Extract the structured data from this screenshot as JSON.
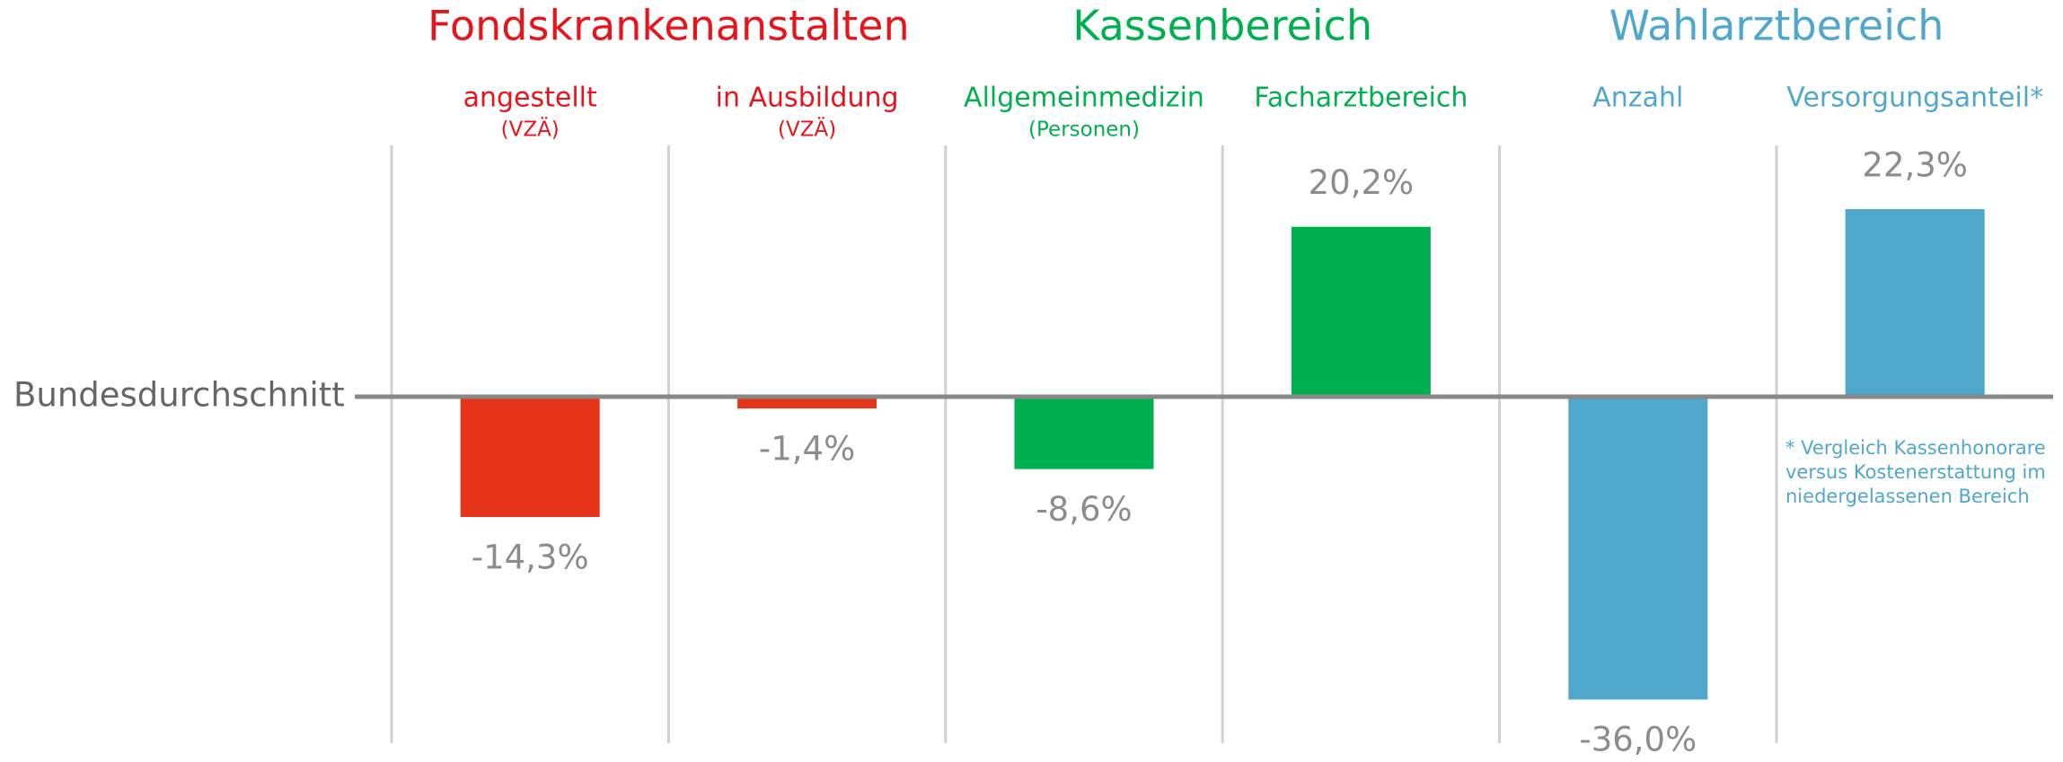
{
  "chart_data": {
    "type": "bar",
    "baseline_label": "Bundesdurchschnitt",
    "series": [
      {
        "name": "Fondskrankenanstalten",
        "color": "#e5341a",
        "text_color": "#e8141c",
        "categories": [
          "angestellt",
          "in Ausbildung"
        ],
        "sublabels": [
          "(VZÄ)",
          "(VZÄ)"
        ],
        "values": [
          -14.3,
          -1.4
        ],
        "value_labels": [
          "-14,3%",
          "-1,4%"
        ]
      },
      {
        "name": "Kassenbereich",
        "color": "#00b050",
        "text_color": "#00b050",
        "categories": [
          "Allgemeinmedizin",
          "Facharztbereich"
        ],
        "sublabels": [
          "(Personen)",
          null
        ],
        "values": [
          -8.6,
          20.2
        ],
        "value_labels": [
          "-8,6%",
          "20,2%"
        ]
      },
      {
        "name": "Wahlarztbereich",
        "color": "#4fa8cb",
        "text_color": "#4fa8cb",
        "categories": [
          "Anzahl",
          "Versorgungsanteil*"
        ],
        "sublabels": [
          null,
          null
        ],
        "values": [
          -36.0,
          22.3
        ],
        "value_labels": [
          "-36,0%",
          "22,3%"
        ]
      }
    ],
    "footnote": [
      "* Vergleich Kassenhonorare",
      "versus Kostenerstattung im",
      "niedergelassenen Bereich"
    ]
  }
}
